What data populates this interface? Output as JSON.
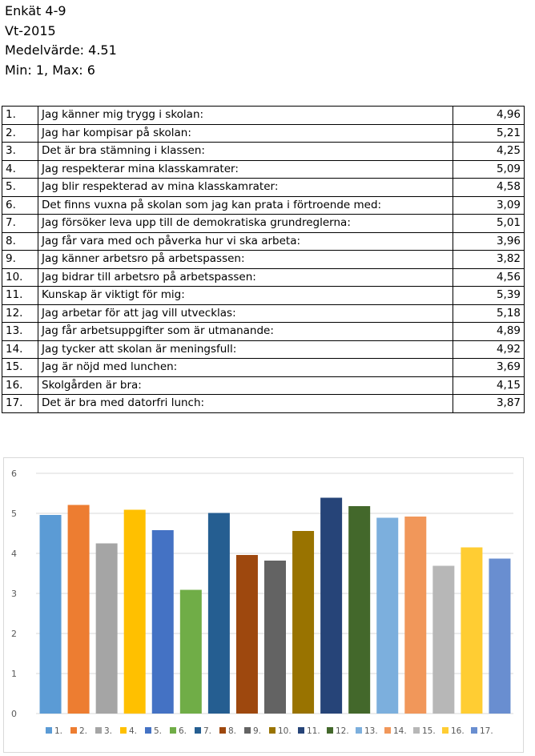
{
  "header": {
    "title": "Enkät 4-9",
    "term": "Vt-2015",
    "mean": "Medelvärde: 4.51",
    "range": "Min: 1, Max: 6"
  },
  "rows": [
    {
      "num": "1.",
      "question": "Jag känner mig trygg i skolan:",
      "value": "4,96"
    },
    {
      "num": "2.",
      "question": "Jag har kompisar på skolan:",
      "value": "5,21"
    },
    {
      "num": "3.",
      "question": "Det är bra stämning i klassen:",
      "value": "4,25"
    },
    {
      "num": "4.",
      "question": "Jag respekterar mina klasskamrater:",
      "value": "5,09"
    },
    {
      "num": "5.",
      "question": "Jag blir respekterad av mina klasskamrater:",
      "value": "4,58"
    },
    {
      "num": "6.",
      "question": "Det finns vuxna på skolan som jag kan prata i förtroende med:",
      "value": "3,09"
    },
    {
      "num": "7.",
      "question": "Jag försöker leva upp till de demokratiska grundreglerna:",
      "value": "5,01"
    },
    {
      "num": "8.",
      "question": "Jag får vara med och påverka hur vi ska arbeta:",
      "value": "3,96"
    },
    {
      "num": "9.",
      "question": "Jag känner arbetsro på arbetspassen:",
      "value": "3,82"
    },
    {
      "num": "10.",
      "question": "Jag bidrar till arbetsro på arbetspassen:",
      "value": "4,56"
    },
    {
      "num": "11.",
      "question": "Kunskap är viktigt för mig:",
      "value": "5,39"
    },
    {
      "num": "12.",
      "question": "Jag arbetar för att jag vill utvecklas:",
      "value": "5,18"
    },
    {
      "num": "13.",
      "question": "Jag får arbetsuppgifter som är utmanande:",
      "value": "4,89"
    },
    {
      "num": "14.",
      "question": "Jag tycker att skolan är meningsfull:",
      "value": "4,92"
    },
    {
      "num": "15.",
      "question": "Jag är nöjd med lunchen:",
      "value": "3,69"
    },
    {
      "num": "16.",
      "question": "Skolgården är bra:",
      "value": "4,15"
    },
    {
      "num": "17.",
      "question": "Det är bra med datorfri lunch:",
      "value": "3,87"
    }
  ],
  "chart_data": {
    "type": "bar",
    "categories": [
      "1.",
      "2.",
      "3.",
      "4.",
      "5.",
      "6.",
      "7.",
      "8.",
      "9.",
      "10.",
      "11.",
      "12.",
      "13.",
      "14.",
      "15.",
      "16.",
      "17."
    ],
    "values": [
      4.96,
      5.21,
      4.25,
      5.09,
      4.58,
      3.09,
      5.01,
      3.96,
      3.82,
      4.56,
      5.39,
      5.18,
      4.89,
      4.92,
      3.69,
      4.15,
      3.87
    ],
    "colors": [
      "#5B9BD5",
      "#ED7D31",
      "#A5A5A5",
      "#FFC000",
      "#4472C4",
      "#70AD47",
      "#255E91",
      "#9E480E",
      "#636363",
      "#997300",
      "#264478",
      "#43682B",
      "#7CAFDD",
      "#F1975A",
      "#B7B7B7",
      "#FFCD33",
      "#698ED0"
    ],
    "yticks": [
      "0",
      "1",
      "2",
      "3",
      "4",
      "5",
      "6"
    ],
    "ylim": [
      0,
      6
    ],
    "grid": true,
    "legend": "bottom",
    "title": "",
    "xlabel": "",
    "ylabel": ""
  }
}
